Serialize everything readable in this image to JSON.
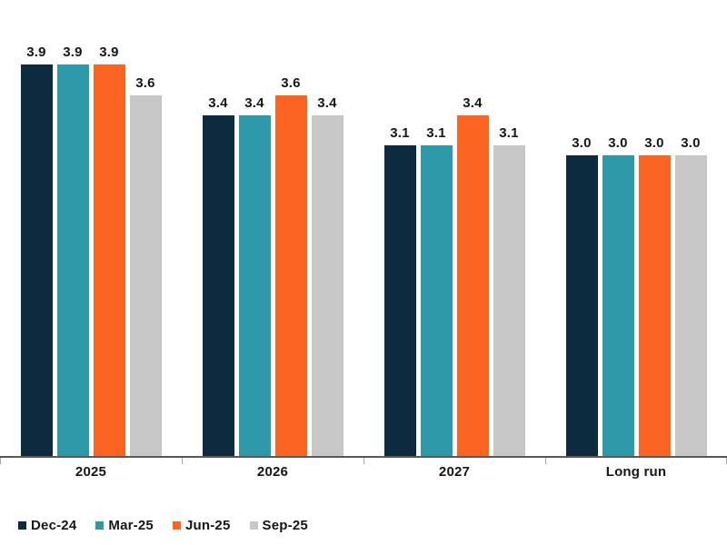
{
  "chart_data": {
    "type": "bar",
    "title": "",
    "categories": [
      "2025",
      "2026",
      "2027",
      "Long run"
    ],
    "series": [
      {
        "name": "Dec-24",
        "color": "#0d2a3f",
        "values": [
          3.9,
          3.4,
          3.1,
          3.0
        ]
      },
      {
        "name": "Mar-25",
        "color": "#2e99a9",
        "values": [
          3.9,
          3.4,
          3.1,
          3.0
        ]
      },
      {
        "name": "Jun-25",
        "color": "#fb6321",
        "values": [
          3.9,
          3.6,
          3.4,
          3.0
        ]
      },
      {
        "name": "Sep-25",
        "color": "#c7c7c7",
        "values": [
          3.6,
          3.4,
          3.1,
          3.0
        ]
      }
    ],
    "value_labels": [
      "3.9",
      "3.9",
      "3.9",
      "3.6",
      "3.4",
      "3.4",
      "3.6",
      "3.4",
      "3.1",
      "3.1",
      "3.4",
      "3.1",
      "3.0",
      "3.0",
      "3.0",
      "3.0"
    ],
    "ylim": [
      0,
      4
    ],
    "grid": false,
    "y_axis_shown": false,
    "legend_position": "bottom-left",
    "axis_colors": {
      "baseline": "#595959",
      "tick": "#a6a6a6"
    },
    "text_color": "#161616"
  }
}
